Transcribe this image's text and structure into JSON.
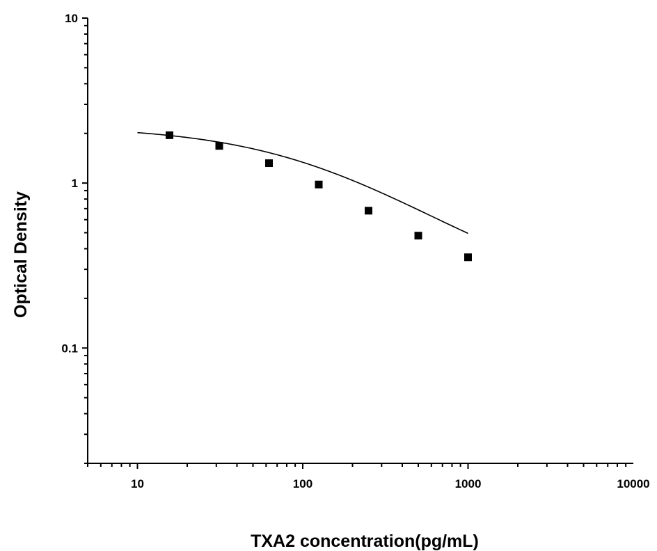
{
  "chart_data": {
    "type": "scatter",
    "title": "",
    "xlabel": "TXA2 concentration(pg/mL)",
    "ylabel": "Optical Density",
    "x_scale": "log",
    "y_scale": "log",
    "xlim": [
      5,
      10000
    ],
    "ylim": [
      0.02,
      10
    ],
    "x_ticks": [
      {
        "value": 10,
        "label": "10"
      },
      {
        "value": 100,
        "label": "100"
      },
      {
        "value": 1000,
        "label": "1000"
      },
      {
        "value": 10000,
        "label": "10000"
      }
    ],
    "y_ticks": [
      {
        "value": 0.1,
        "label": "0.1"
      },
      {
        "value": 1,
        "label": "1"
      },
      {
        "value": 10,
        "label": "10"
      }
    ],
    "grid": false,
    "legend": false,
    "series": [
      {
        "marker": "square",
        "color": "#000000",
        "x": [
          15.625,
          31.25,
          62.5,
          125,
          250,
          500,
          1000
        ],
        "y": [
          1.95,
          1.68,
          1.32,
          0.98,
          0.68,
          0.48,
          0.355
        ]
      }
    ],
    "fit_curve": {
      "type": "four-parameter logistic",
      "color": "#000000",
      "x_range": [
        10,
        1000
      ],
      "params": {
        "top": 2.22,
        "bottom": 0.175,
        "ec50": 138,
        "hill": 0.85
      }
    }
  }
}
